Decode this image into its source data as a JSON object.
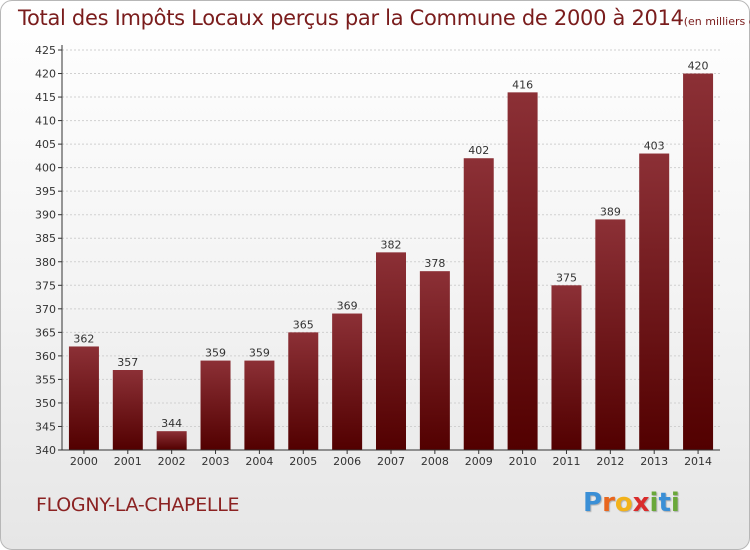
{
  "title": {
    "main": "Total des Impôts Locaux perçus par la Commune de 2000 à 2014",
    "unit": "(en milliers d'€)"
  },
  "commune": "FLOGNY-LA-CHAPELLE",
  "logo": {
    "letters": [
      "P",
      "r",
      "o",
      "x",
      "i",
      "t",
      "i"
    ],
    "colors": [
      "#3a8fd6",
      "#e8661e",
      "#f2b21b",
      "#d92b2b",
      "#6aa83a",
      "#3a8fd6",
      "#6aa83a"
    ]
  },
  "colors": {
    "bar_top": "#8c3036",
    "bar_bottom": "#520000",
    "title": "#7a1c1c"
  },
  "chart_data": {
    "type": "bar",
    "categories": [
      "2000",
      "2001",
      "2002",
      "2003",
      "2004",
      "2005",
      "2006",
      "2007",
      "2008",
      "2009",
      "2010",
      "2011",
      "2012",
      "2013",
      "2014"
    ],
    "values": [
      362,
      357,
      344,
      359,
      359,
      365,
      369,
      382,
      378,
      402,
      416,
      375,
      389,
      403,
      420
    ],
    "ylim": [
      340,
      425
    ],
    "yticks": [
      340,
      345,
      350,
      355,
      360,
      365,
      370,
      375,
      380,
      385,
      390,
      395,
      400,
      405,
      410,
      415,
      420,
      425
    ],
    "grid": true,
    "title": "Total des Impôts Locaux perçus par la Commune de 2000 à 2014",
    "xlabel": "",
    "ylabel": ""
  }
}
